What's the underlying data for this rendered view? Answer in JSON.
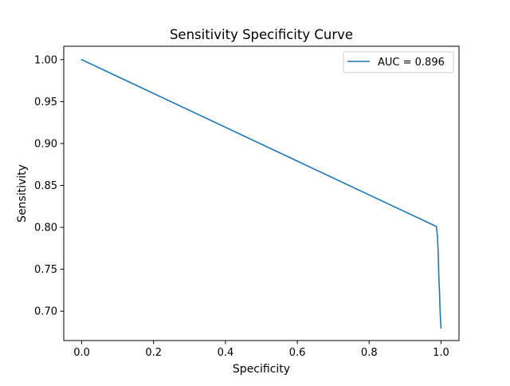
{
  "chart_data": {
    "type": "line",
    "title": "Sensitivity Specificity Curve",
    "xlabel": "Specificity",
    "ylabel": "Sensitivity",
    "xlim": [
      -0.05,
      1.05
    ],
    "ylim": [
      0.665,
      1.016
    ],
    "xticks": [
      0.0,
      0.2,
      0.4,
      0.6,
      0.8,
      1.0
    ],
    "xtick_labels": [
      "0.0",
      "0.2",
      "0.4",
      "0.6",
      "0.8",
      "1.0"
    ],
    "yticks": [
      0.7,
      0.75,
      0.8,
      0.85,
      0.9,
      0.95,
      1.0
    ],
    "ytick_labels": [
      "0.70",
      "0.75",
      "0.80",
      "0.85",
      "0.90",
      "0.95",
      "1.00"
    ],
    "grid": false,
    "legend_position": "upper right",
    "series": [
      {
        "name": "AUC = 0.896",
        "color": "#1f77b4",
        "x": [
          0.0,
          0.987,
          0.99,
          0.991,
          0.992,
          0.993,
          0.994,
          0.995,
          0.996,
          0.997,
          0.998,
          1.0
        ],
        "y": [
          1.0,
          0.801,
          0.79,
          0.78,
          0.77,
          0.755,
          0.74,
          0.73,
          0.72,
          0.705,
          0.695,
          0.68
        ]
      }
    ]
  }
}
